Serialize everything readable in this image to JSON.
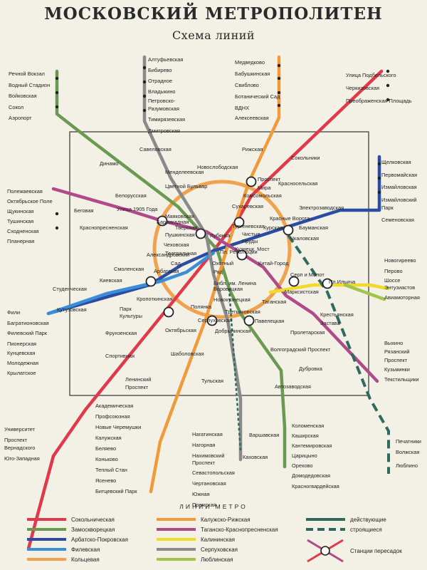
{
  "title": "МОСКОВСКИЙ МЕТРОПОЛИТЕН",
  "subtitle": "Схема линий",
  "legend": {
    "heading": "ЛИНИИ МЕТРО",
    "lines": [
      {
        "label": "Сокольническая",
        "color": "#e03a4a"
      },
      {
        "label": "Замоскворецкая",
        "color": "#6a9a52"
      },
      {
        "label": "Арбатско-Покровская",
        "color": "#2b4ca3"
      },
      {
        "label": "Филевская",
        "color": "#3a8dd6"
      },
      {
        "label": "Кольцевая",
        "color": "#f0a24e"
      },
      {
        "label": "Калужско-Рижская",
        "color": "#f09a3a"
      },
      {
        "label": "Таганско-Краснопресненская",
        "color": "#b04a88"
      },
      {
        "label": "Калининская",
        "color": "#f2da2a"
      },
      {
        "label": "Серпуховская",
        "color": "#8a8a8a"
      },
      {
        "label": "Люблинская",
        "color": "#9fc64a"
      }
    ],
    "status": [
      {
        "label": "действующие"
      },
      {
        "label": "строящиеся"
      }
    ],
    "transfer_label": "Станции пересадок"
  },
  "stations": [
    "Речной Вокзал",
    "Водный Стадион",
    "Войковская",
    "Сокол",
    "Аэропорт",
    "Алтуфьевская",
    "Бибирево",
    "Отрадное",
    "Владыкино",
    "Петровско-",
    "Разумовская",
    "Тимирязевская",
    "Дмитровская",
    "Медведково",
    "Бабушкинская",
    "Свиблово",
    "Ботанический Сад",
    "ВДНХ",
    "Алексеевская",
    "Улица Подбельского",
    "Черкизовская",
    "Преображенская Площадь",
    "Савеловская",
    "Динамо",
    "Менделеевская",
    "Новослободская",
    "Рижская",
    "Проспект",
    "Мира",
    "Сокольники",
    "Щелковская",
    "Первомайская",
    "Измайловская",
    "Измайловский",
    "Парк",
    "Семеновская",
    "Полежаевская",
    "Октябрьское Поле",
    "Щукинская",
    "Тушинская",
    "Сходненская",
    "Планерная",
    "Белорусская",
    "Цветной Бульвар",
    "Комсомольская",
    "Красносельская",
    "Беговая",
    "Улица 1905 Года",
    "Сухаревская",
    "Электрозаводская",
    "Красные Ворота",
    "Баррикадная",
    "Маяковская",
    "Тургеневская",
    "Курская",
    "Бауманская",
    "Краснопресненская",
    "Тверская",
    "Пушкинская",
    "Лубянка",
    "Чистые",
    "Пруды",
    "Чкаловская",
    "Чеховская",
    "Кузнецк. Мост",
    "Театральная",
    "Пл. Революции",
    "Александровский",
    "Сад",
    "Арбатская",
    "Охотный",
    "Ряд",
    "Китай-Город",
    "Библ. им. Ленина",
    "Боровицкая",
    "Смоленская",
    "Киевская",
    "Серп и Молот",
    "Пл.Ильича",
    "Новогиреево",
    "Перово",
    "Шоссе",
    "Энтузиастов",
    "Авиамоторная",
    "Студенческая",
    "Новокузнецкая",
    "Марксистская",
    "Таганская",
    "Фили",
    "Кутузовская",
    "Кропоткинская",
    "Парк",
    "Культуры",
    "Полянка",
    "Третьяковская",
    "Багратионовская",
    "Филевский Парк",
    "Пионерская",
    "Кунцевская",
    "Молодежная",
    "Крылатское",
    "Октябрьская",
    "Серпуховская",
    "Павелецкая",
    "Добрынинская",
    "Пролетарская",
    "Крестьянская",
    "Застава",
    "Фрунзенская",
    "Шаболовская",
    "Волгоградский Проспект",
    "Спортивная",
    "Ленинский",
    "Проспект",
    "Тульская",
    "Дубровка",
    "Автозаводская",
    "Выхино",
    "Рязанский",
    "Проспект",
    "Кузьминки",
    "Текстильщики",
    "Академическая",
    "Профсоюзная",
    "Новые Черемушки",
    "Калужская",
    "Беляево",
    "Коньково",
    "Теплый Стан",
    "Ясенево",
    "Битцевский Парк",
    "Нагатинская",
    "Нагорная",
    "Нахимовский",
    "Проспект",
    "Севастопольская",
    "Чертановская",
    "Южная",
    "Пражская",
    "Варшавская",
    "Каховская",
    "Коломенская",
    "Каширская",
    "Кантемировская",
    "Царицыно",
    "Орехово",
    "Домодедовская",
    "Красногвардейская",
    "Университет",
    "Проспект",
    "Вернадского",
    "Юго-Западная",
    "Печатники",
    "Волжская",
    "Люблино"
  ]
}
